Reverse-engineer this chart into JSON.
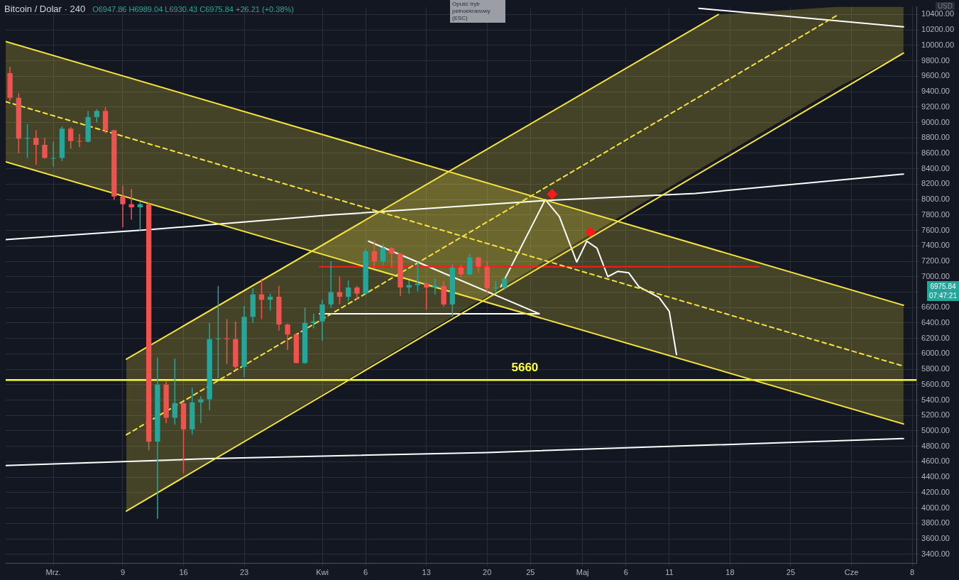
{
  "chart_data": {
    "type": "candlestick",
    "title": "Bitcoin / Dolar · 240",
    "ylabel": "USD",
    "annotations": [
      "O6947.86 H6989.04 L6930.43 C6975.84 +26.21 (+0.38%)",
      "Opuść tryb pełnoekranowy (ESC)",
      "6975.84",
      "07:47:21"
    ],
    "x": [
      "--02-25",
      "--02-26",
      "--02-27",
      "--02-28",
      "--02-29",
      "--03-01",
      "--03-02",
      "--03-03",
      "--03-04",
      "--03-05",
      "--03-06",
      "--03-07",
      "--03-08",
      "--03-09",
      "--03-10",
      "--03-11",
      "--03-12",
      "--03-13",
      "--03-14",
      "--03-15",
      "--03-16",
      "--03-17",
      "--03-18",
      "--03-19",
      "--03-20",
      "--03-21",
      "--03-22",
      "--03-23",
      "--03-24",
      "--03-25",
      "--03-26",
      "--03-27",
      "--03-28",
      "--03-29",
      "--03-30",
      "--03-31",
      "--04-01",
      "--04-02",
      "--04-03",
      "--04-04",
      "--04-05",
      "--04-06",
      "--04-07",
      "--04-08",
      "--04-09",
      "--04-10",
      "--04-11",
      "--04-12",
      "--04-13",
      "--04-14",
      "--04-15",
      "--04-16",
      "--04-17",
      "--04-18",
      "--04-19",
      "--04-20",
      "--04-21",
      "--04-22"
    ],
    "ohlc": [
      [
        9640,
        9720,
        9280,
        9320
      ],
      [
        9320,
        9380,
        8600,
        8790
      ],
      [
        8790,
        8980,
        8540,
        8800
      ],
      [
        8800,
        8900,
        8450,
        8710
      ],
      [
        8710,
        8800,
        8530,
        8540
      ],
      [
        8540,
        8750,
        8430,
        8540
      ],
      [
        8540,
        8950,
        8500,
        8920
      ],
      [
        8920,
        8940,
        8660,
        8760
      ],
      [
        8760,
        8850,
        8680,
        8750
      ],
      [
        8750,
        9150,
        8740,
        9070
      ],
      [
        9070,
        9170,
        9000,
        9150
      ],
      [
        9150,
        9200,
        8860,
        8900
      ],
      [
        8900,
        8900,
        8000,
        8040
      ],
      [
        8040,
        8180,
        7640,
        7940
      ],
      [
        7940,
        8140,
        7740,
        7900
      ],
      [
        7900,
        7970,
        7600,
        7940
      ],
      [
        7940,
        7960,
        4750,
        4860
      ],
      [
        4860,
        5950,
        3860,
        5600
      ],
      [
        5600,
        5650,
        5100,
        5170
      ],
      [
        5170,
        5940,
        5080,
        5360
      ],
      [
        5360,
        5370,
        4450,
        5020
      ],
      [
        5020,
        5560,
        4950,
        5370
      ],
      [
        5370,
        5450,
        5100,
        5410
      ],
      [
        5410,
        6400,
        5270,
        6190
      ],
      [
        6190,
        6880,
        5680,
        6200
      ],
      [
        6200,
        6450,
        5870,
        6190
      ],
      [
        6190,
        6420,
        5790,
        5830
      ],
      [
        5830,
        6620,
        5700,
        6480
      ],
      [
        6480,
        6850,
        6400,
        6770
      ],
      [
        6770,
        6970,
        6450,
        6700
      ],
      [
        6700,
        6780,
        6560,
        6740
      ],
      [
        6740,
        6880,
        6300,
        6380
      ],
      [
        6380,
        6390,
        6050,
        6250
      ],
      [
        6250,
        6270,
        5880,
        5880
      ],
      [
        5880,
        6600,
        5870,
        6400
      ],
      [
        6400,
        6520,
        6330,
        6420
      ],
      [
        6420,
        6700,
        6170,
        6640
      ],
      [
        6640,
        7200,
        6600,
        6800
      ],
      [
        6800,
        7000,
        6640,
        6740
      ],
      [
        6740,
        6950,
        6680,
        6860
      ],
      [
        6860,
        6880,
        6700,
        6780
      ],
      [
        6780,
        7360,
        6760,
        7330
      ],
      [
        7330,
        7470,
        7120,
        7200
      ],
      [
        7200,
        7430,
        7150,
        7370
      ],
      [
        7370,
        7380,
        7120,
        7300
      ],
      [
        7300,
        7300,
        6750,
        6860
      ],
      [
        6860,
        6950,
        6780,
        6890
      ],
      [
        6890,
        7190,
        6810,
        6910
      ],
      [
        6910,
        6920,
        6570,
        6860
      ],
      [
        6860,
        6980,
        6770,
        6880
      ],
      [
        6880,
        6940,
        6610,
        6640
      ],
      [
        6640,
        7160,
        6480,
        7120
      ],
      [
        7120,
        7150,
        6990,
        7030
      ],
      [
        7030,
        7300,
        7020,
        7250
      ],
      [
        7250,
        7260,
        7050,
        7130
      ],
      [
        7130,
        7200,
        6800,
        6850
      ],
      [
        6850,
        6940,
        6800,
        6860
      ],
      [
        6860,
        6990,
        6830,
        6975.84
      ]
    ],
    "series": [
      {
        "type": "line",
        "color": "#f5e342",
        "line_style": "dashed",
        "x": [
          "--02-24T12:00",
          "--06-07"
        ],
        "values": [
          9270,
          5840
        ],
        "lower": [
          8490,
          5090
        ],
        "upper": [
          10050,
          6630
        ]
      },
      {
        "type": "line",
        "color": "#f5e342",
        "line_style": "dashed",
        "x": [
          "--03-09T10:00",
          "--05-16T16:00",
          "--05-30T12:00",
          "--06-07"
        ],
        "values": [
          4950,
          9480,
          10400,
          null
        ],
        "lower": [
          3960,
          8540,
          9460,
          9900
        ],
        "upper": [
          5930,
          10400,
          10500,
          10500
        ]
      },
      {
        "type": "line",
        "color": "#f5e342",
        "line_style": "solid",
        "x": [
          "--02-24T12:00",
          "--06-07"
        ],
        "values": [
          10050,
          6630
        ]
      },
      {
        "type": "line",
        "color": "#f5e342",
        "line_style": "solid",
        "x": [
          "--02-24T12:00",
          "--06-07"
        ],
        "values": [
          8490,
          5090
        ]
      },
      {
        "type": "line",
        "color": "#f5e342",
        "line_style": "solid",
        "x": [
          "--03-09T10:00",
          "--05-16T16:00"
        ],
        "values": [
          5930,
          10400
        ]
      },
      {
        "type": "line",
        "color": "#f5e342",
        "line_style": "solid",
        "x": [
          "--03-09T10:00",
          "--06-07"
        ],
        "values": [
          3960,
          9900
        ]
      },
      {
        "type": "line",
        "color": "#ff1a1a",
        "line_style": "solid",
        "x": [
          "--03-31T16:00",
          "--05-21T08:00"
        ],
        "values": [
          7130,
          7130
        ]
      },
      {
        "type": "line",
        "color": "#ffffff",
        "line_style": "solid",
        "x": [
          "--03-31T16:00",
          "--04-26"
        ],
        "values": [
          6520,
          6520
        ]
      },
      {
        "type": "line",
        "color": "#ffffff",
        "line_style": "solid",
        "x": [
          "--04-06T08:00",
          "--04-26"
        ],
        "values": [
          7460,
          6520
        ]
      },
      {
        "type": "line",
        "color": "#ffffff",
        "line_style": "solid",
        "x": [
          "--02-24T12:00",
          "--03-12",
          "--04-02",
          "--04-27",
          "--05-14",
          "--06-07"
        ],
        "values": [
          7480,
          7610,
          7800,
          7990,
          8080,
          8330
        ]
      },
      {
        "type": "line",
        "color": "#ffffff",
        "line_style": "solid",
        "x": [
          "--02-24T12:00",
          "--03-19",
          "--04-20",
          "--05-14",
          "--06-07"
        ],
        "values": [
          4550,
          4640,
          4720,
          4810,
          4900
        ]
      },
      {
        "type": "line",
        "color": "#ffffff",
        "line_style": "solid",
        "x": [
          "--05-14T10:00",
          "--06-07"
        ],
        "values": [
          10480,
          10240
        ]
      },
      {
        "type": "line",
        "color": "#ffffff",
        "line_style": "solid",
        "x": [
          "--04-21T14:00",
          "--04-26T17:00",
          "--04-28T08:00",
          "--04-30T08:00",
          "--05-01T12:00",
          "--05-02T16:00",
          "--05-03T22:00",
          "--05-05T02:00",
          "--05-06T08:00",
          "--05-07T12:00",
          "--05-09T20:00",
          "--05-11T00:00",
          "--05-11T20:00"
        ],
        "values": [
          6870,
          8000,
          7780,
          7190,
          7460,
          7370,
          7000,
          7070,
          7050,
          6870,
          6730,
          6550,
          5990
        ]
      },
      {
        "type": "scatter",
        "color": "#ff1a1a",
        "marker": "diamond",
        "x": [
          "--04-27T12:00",
          "--05-01T22:00"
        ],
        "values": [
          8070,
          7580
        ]
      }
    ],
    "ref_lines": [
      {
        "axis": "y",
        "value": 5660,
        "label": "5660",
        "color": "#ffff33"
      }
    ],
    "xlim": [
      "--02-24T12:00",
      "--06-08T12:00"
    ],
    "xticks": [
      {
        "value": "--03-01",
        "label": "Mrz."
      },
      {
        "value": "--03-09",
        "label": "9"
      },
      {
        "value": "--03-16",
        "label": "16"
      },
      {
        "value": "--03-23",
        "label": "23"
      },
      {
        "value": "--04-01",
        "label": "Kwi"
      },
      {
        "value": "--04-06",
        "label": "6"
      },
      {
        "value": "--04-13",
        "label": "13"
      },
      {
        "value": "--04-20",
        "label": "20"
      },
      {
        "value": "--04-25",
        "label": "25"
      },
      {
        "value": "--05-01",
        "label": "Maj"
      },
      {
        "value": "--05-06",
        "label": "6"
      },
      {
        "value": "--05-11",
        "label": "11"
      },
      {
        "value": "--05-18",
        "label": "18"
      },
      {
        "value": "--05-25",
        "label": "25"
      },
      {
        "value": "--06-01",
        "label": "Cze"
      },
      {
        "value": "--06-08",
        "label": "8"
      }
    ],
    "ylim": [
      3280,
      10500
    ],
    "yticks": [
      {
        "value": 3400,
        "label": "3400.00"
      },
      {
        "value": 3600,
        "label": "3600.00"
      },
      {
        "value": 3800,
        "label": "3800.00"
      },
      {
        "value": 4000,
        "label": "4000.00"
      },
      {
        "value": 4200,
        "label": "4200.00"
      },
      {
        "value": 4400,
        "label": "4400.00"
      },
      {
        "value": 4600,
        "label": "4600.00"
      },
      {
        "value": 4800,
        "label": "4800.00"
      },
      {
        "value": 5000,
        "label": "5000.00"
      },
      {
        "value": 5200,
        "label": "5200.00"
      },
      {
        "value": 5400,
        "label": "5400.00"
      },
      {
        "value": 5600,
        "label": "5600.00"
      },
      {
        "value": 5800,
        "label": "5800.00"
      },
      {
        "value": 6000,
        "label": "6000.00"
      },
      {
        "value": 6200,
        "label": "6200.00"
      },
      {
        "value": 6400,
        "label": "6400.00"
      },
      {
        "value": 6600,
        "label": "6600.00"
      },
      {
        "value": 6800,
        "label": null
      },
      {
        "value": 7000,
        "label": "7000.00"
      },
      {
        "value": 7200,
        "label": "7200.00"
      },
      {
        "value": 7400,
        "label": "7400.00"
      },
      {
        "value": 7600,
        "label": "7600.00"
      },
      {
        "value": 7800,
        "label": "7800.00"
      },
      {
        "value": 8000,
        "label": "8000.00"
      },
      {
        "value": 8200,
        "label": "8200.00"
      },
      {
        "value": 8400,
        "label": "8400.00"
      },
      {
        "value": 8600,
        "label": "8600.00"
      },
      {
        "value": 8800,
        "label": "8800.00"
      },
      {
        "value": 9000,
        "label": "9000.00"
      },
      {
        "value": 9200,
        "label": "9200.00"
      },
      {
        "value": 9400,
        "label": "9400.00"
      },
      {
        "value": 9600,
        "label": "9600.00"
      },
      {
        "value": 9800,
        "label": "9800.00"
      },
      {
        "value": 10000,
        "label": "10000.00"
      },
      {
        "value": 10200,
        "label": "10200.00"
      },
      {
        "value": 10400,
        "label": "10400.00"
      }
    ],
    "grid": true,
    "legend": false
  }
}
